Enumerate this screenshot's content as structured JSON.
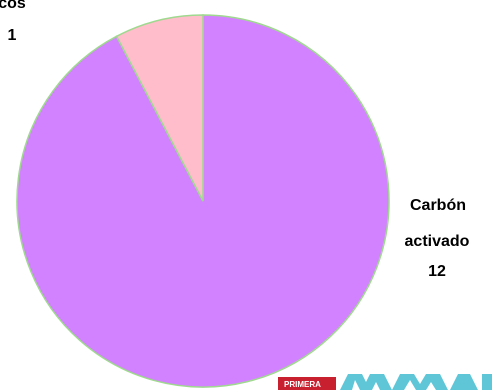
{
  "chart_data": {
    "type": "pie",
    "title": "",
    "slices": [
      {
        "name": "Carbón activado",
        "name_lines": [
          "Carbón",
          "activado"
        ],
        "value": 12,
        "value_text": "12",
        "color": "#d282ff"
      },
      {
        "name": "tricos",
        "name_lines": [
          "tricos"
        ],
        "value": 1,
        "value_text": "1",
        "color": "#ffbdcb"
      }
    ],
    "outline_color": "#9fd98f",
    "legend": "none",
    "watermark": {
      "banner_text": "PRIMERA",
      "banner_color": "#c8202f",
      "mark_color": "#5fc6d8"
    }
  }
}
